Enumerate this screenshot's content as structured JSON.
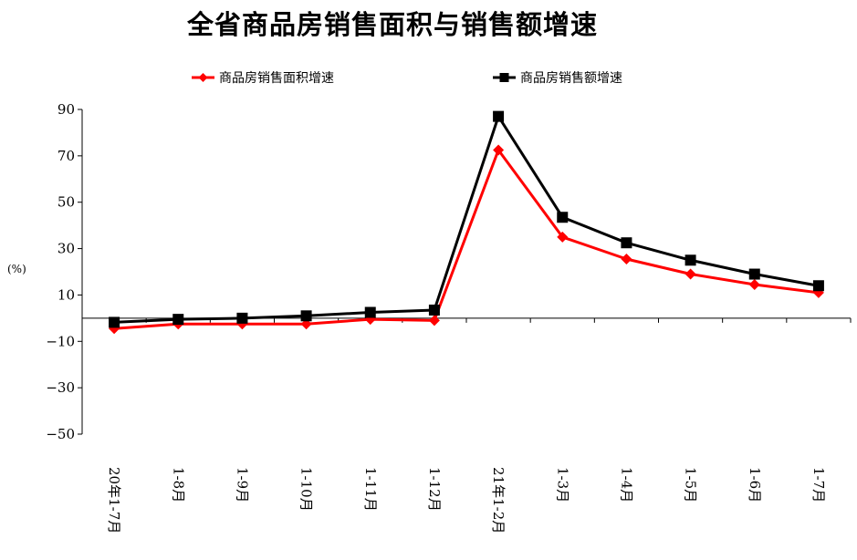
{
  "chart_data": {
    "type": "line",
    "title": "全省商品房销售面积与销售额增速",
    "ylabel": "(%)",
    "xlabel": "",
    "ylim": [
      -50,
      90
    ],
    "yticks": [
      90,
      70,
      50,
      30,
      10,
      -10,
      -30,
      -50
    ],
    "grid": false,
    "legend_position": "top",
    "categories": [
      "20年1-7月",
      "1-8月",
      "1-9月",
      "1-10月",
      "1-11月",
      "1-12月",
      "21年1-2月",
      "1-3月",
      "1-4月",
      "1-5月",
      "1-6月",
      "1-7月"
    ],
    "series": [
      {
        "name": "商品房销售面积增速",
        "color": "#ff0000",
        "marker": "diamond",
        "values": [
          -4.5,
          -2.5,
          -2.5,
          -2.5,
          -0.5,
          -1.0,
          72.5,
          35.0,
          25.5,
          19.0,
          14.5,
          11.0
        ]
      },
      {
        "name": "商品房销售额增速",
        "color": "#000000",
        "marker": "square",
        "values": [
          -1.8,
          -0.5,
          0.0,
          1.0,
          2.5,
          3.5,
          87.0,
          43.5,
          32.5,
          25.0,
          19.0,
          14.0
        ]
      }
    ]
  }
}
